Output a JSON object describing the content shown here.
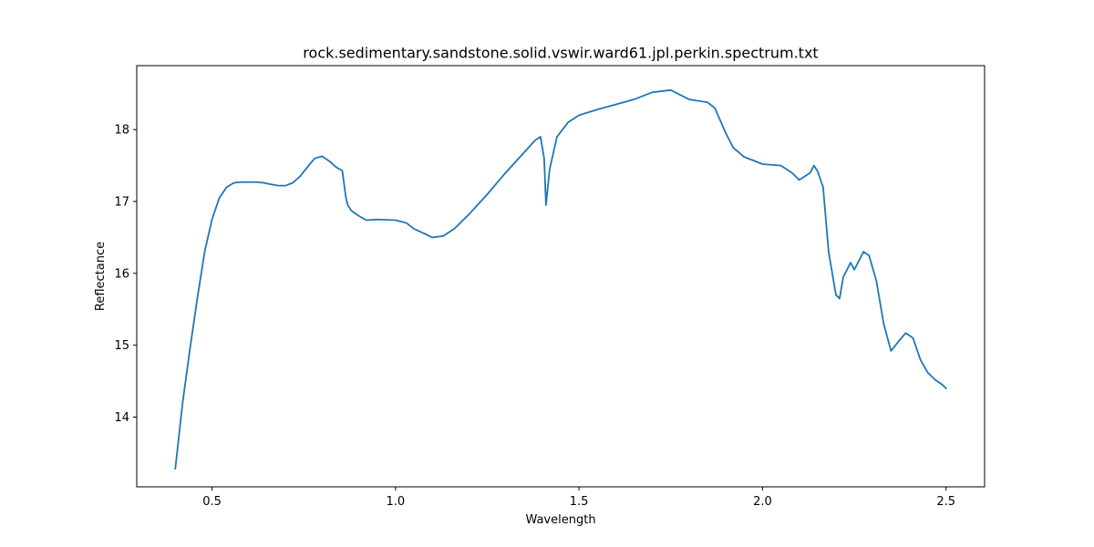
{
  "chart_data": {
    "type": "line",
    "title": "rock.sedimentary.sandstone.solid.vswir.ward61.jpl.perkin.spectrum.txt",
    "xlabel": "Wavelength",
    "ylabel": "Reflectance",
    "xlim": [
      0.295,
      2.605
    ],
    "ylim": [
      13.03,
      18.89
    ],
    "xticks": [
      0.5,
      1.0,
      1.5,
      2.0,
      2.5
    ],
    "xtick_labels": [
      "0.5",
      "1.0",
      "1.5",
      "2.0",
      "2.5"
    ],
    "yticks": [
      14,
      15,
      16,
      17,
      18
    ],
    "ytick_labels": [
      "14",
      "15",
      "16",
      "17",
      "18"
    ],
    "grid": false,
    "line_color": "#1f77b4",
    "series": [
      {
        "x": [
          0.4,
          0.42,
          0.44,
          0.46,
          0.48,
          0.5,
          0.52,
          0.54,
          0.56,
          0.58,
          0.6,
          0.62,
          0.64,
          0.66,
          0.68,
          0.7,
          0.72,
          0.74,
          0.76,
          0.78,
          0.8,
          0.82,
          0.84,
          0.855,
          0.865,
          0.87,
          0.88,
          0.9,
          0.92,
          0.95,
          1.0,
          1.03,
          1.05,
          1.08,
          1.1,
          1.13,
          1.16,
          1.2,
          1.25,
          1.3,
          1.35,
          1.38,
          1.395,
          1.405,
          1.41,
          1.42,
          1.44,
          1.47,
          1.5,
          1.55,
          1.6,
          1.65,
          1.7,
          1.75,
          1.8,
          1.85,
          1.87,
          1.9,
          1.92,
          1.95,
          2.0,
          2.05,
          2.08,
          2.1,
          2.13,
          2.14,
          2.15,
          2.165,
          2.18,
          2.2,
          2.21,
          2.22,
          2.24,
          2.25,
          2.26,
          2.275,
          2.29,
          2.31,
          2.33,
          2.35,
          2.37,
          2.39,
          2.41,
          2.43,
          2.45,
          2.47,
          2.49,
          2.5
        ],
        "y": [
          13.28,
          14.2,
          14.95,
          15.65,
          16.3,
          16.75,
          17.05,
          17.2,
          17.26,
          17.27,
          17.27,
          17.27,
          17.26,
          17.24,
          17.22,
          17.22,
          17.26,
          17.35,
          17.48,
          17.6,
          17.63,
          17.56,
          17.47,
          17.43,
          17.05,
          16.95,
          16.87,
          16.8,
          16.74,
          16.75,
          16.74,
          16.7,
          16.62,
          16.55,
          16.5,
          16.52,
          16.62,
          16.82,
          17.1,
          17.4,
          17.68,
          17.85,
          17.9,
          17.6,
          16.95,
          17.45,
          17.9,
          18.1,
          18.2,
          18.28,
          18.35,
          18.42,
          18.52,
          18.55,
          18.42,
          18.38,
          18.3,
          17.95,
          17.75,
          17.62,
          17.52,
          17.5,
          17.4,
          17.3,
          17.4,
          17.5,
          17.42,
          17.2,
          16.3,
          15.7,
          15.65,
          15.95,
          16.15,
          16.05,
          16.15,
          16.3,
          16.25,
          15.9,
          15.3,
          14.92,
          15.05,
          15.17,
          15.1,
          14.8,
          14.62,
          14.52,
          14.45,
          14.4
        ]
      }
    ]
  }
}
